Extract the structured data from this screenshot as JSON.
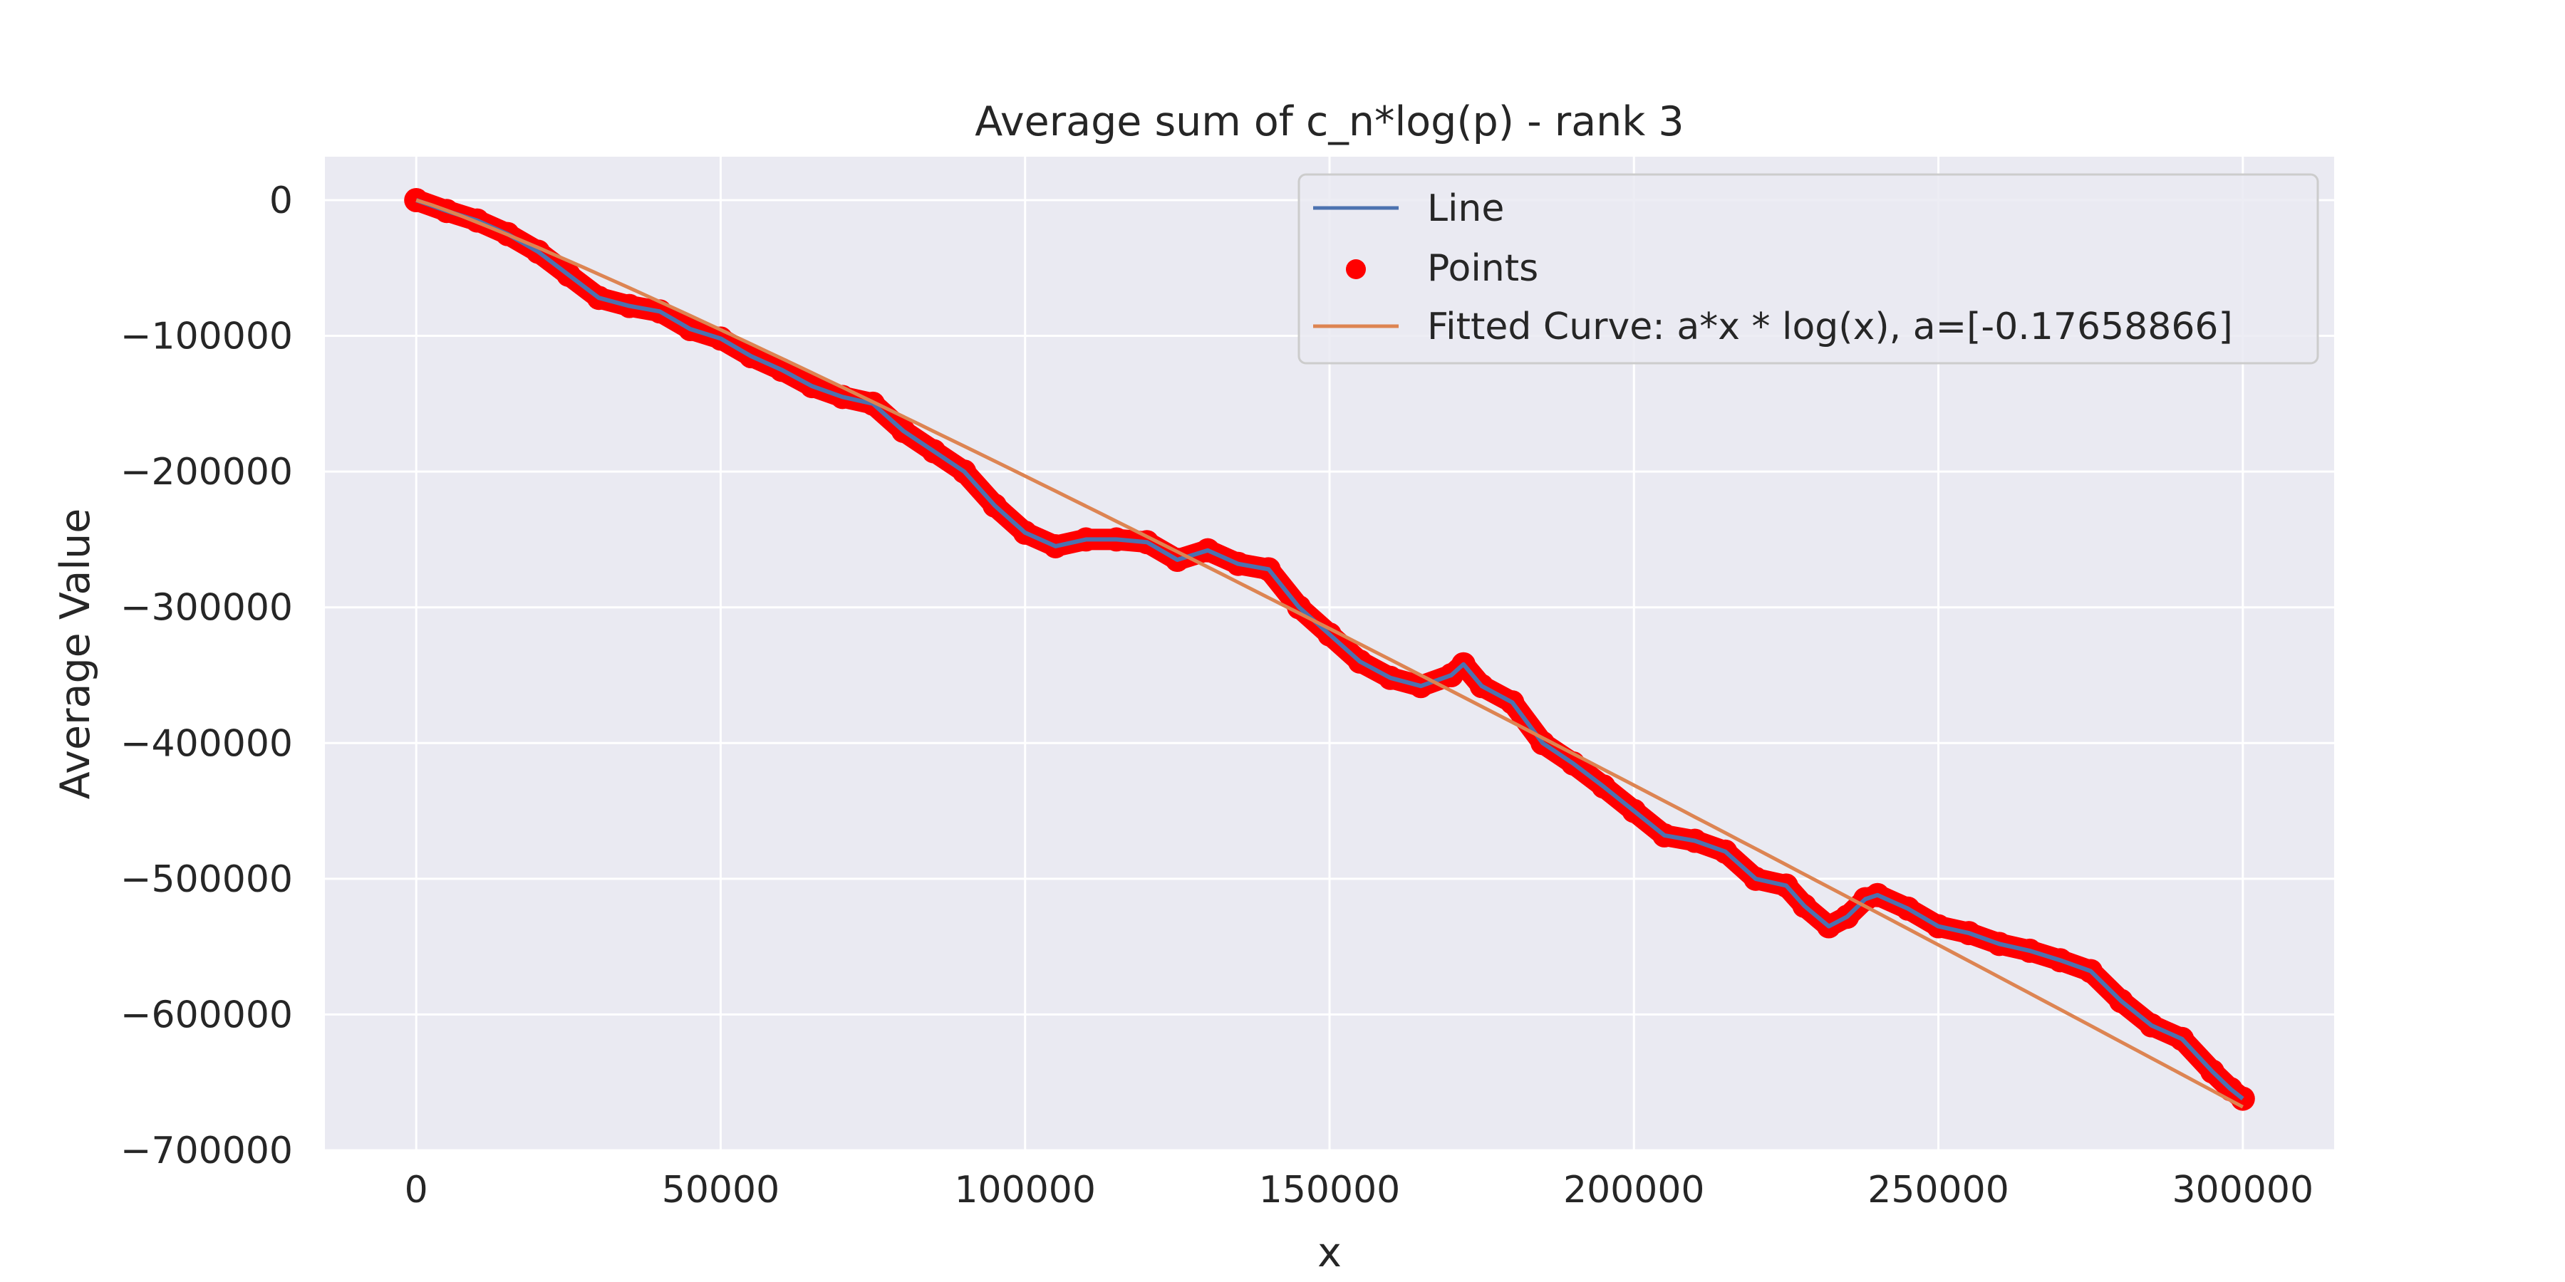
{
  "colors": {
    "axes_background": "#eaeaf2",
    "grid": "#ffffff",
    "line": "#4c72b0",
    "points": "#ff0000",
    "fit": "#dd8452",
    "text": "#262626"
  },
  "chart_data": {
    "type": "line",
    "title": "Average sum of c_n*log(p) - rank 3",
    "xlabel": "x",
    "ylabel": "Average Value",
    "xlim": [
      -15000,
      315000
    ],
    "ylim": [
      -700000,
      32000
    ],
    "x_ticks": [
      0,
      50000,
      100000,
      150000,
      200000,
      250000,
      300000
    ],
    "x_tick_labels": [
      "0",
      "50000",
      "100000",
      "150000",
      "200000",
      "250000",
      "300000"
    ],
    "y_ticks": [
      0,
      -100000,
      -200000,
      -300000,
      -400000,
      -500000,
      -600000,
      -700000
    ],
    "y_tick_labels": [
      "0",
      "−100000",
      "−200000",
      "−300000",
      "−400000",
      "−500000",
      "−600000",
      "−700000"
    ],
    "grid": true,
    "legend_position": "top-right",
    "series": [
      {
        "name": "Line",
        "kind": "line",
        "x": [
          0,
          5000,
          10000,
          15000,
          20000,
          25000,
          30000,
          35000,
          40000,
          45000,
          50000,
          55000,
          60000,
          65000,
          70000,
          75000,
          80000,
          85000,
          90000,
          95000,
          100000,
          105000,
          110000,
          115000,
          120000,
          125000,
          130000,
          135000,
          140000,
          145000,
          150000,
          155000,
          160000,
          165000,
          170000,
          172000,
          175000,
          180000,
          185000,
          190000,
          195000,
          200000,
          205000,
          210000,
          215000,
          220000,
          225000,
          228000,
          232000,
          235000,
          238000,
          240000,
          245000,
          250000,
          255000,
          260000,
          265000,
          270000,
          275000,
          280000,
          285000,
          290000,
          295000,
          298000,
          300000
        ],
        "y": [
          0,
          -8000,
          -15000,
          -25000,
          -38000,
          -55000,
          -72000,
          -78000,
          -82000,
          -95000,
          -102000,
          -115000,
          -125000,
          -137000,
          -145000,
          -150000,
          -170000,
          -185000,
          -200000,
          -225000,
          -245000,
          -255000,
          -250000,
          -250000,
          -252000,
          -265000,
          -258000,
          -268000,
          -272000,
          -300000,
          -320000,
          -340000,
          -352000,
          -358000,
          -350000,
          -342000,
          -358000,
          -370000,
          -400000,
          -415000,
          -432000,
          -450000,
          -468000,
          -472000,
          -480000,
          -500000,
          -505000,
          -520000,
          -535000,
          -528000,
          -515000,
          -512000,
          -522000,
          -535000,
          -540000,
          -548000,
          -553000,
          -560000,
          -568000,
          -590000,
          -608000,
          -618000,
          -642000,
          -655000,
          -662000
        ]
      },
      {
        "name": "Points",
        "kind": "scatter"
      },
      {
        "name": "Fitted Curve: a*x * log(x), a=[-0.17658866]",
        "kind": "line",
        "a": -0.17658866
      }
    ]
  }
}
